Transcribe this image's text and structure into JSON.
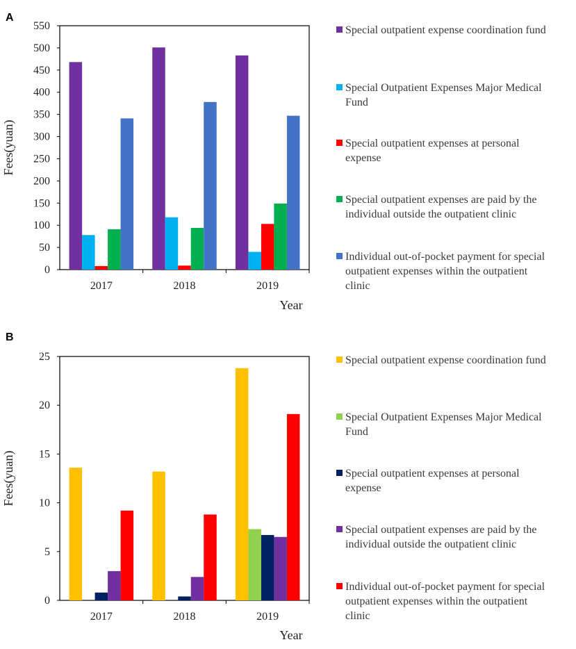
{
  "chart_data": [
    {
      "panel": "A",
      "type": "bar",
      "categories": [
        "2017",
        "2018",
        "2019"
      ],
      "series": [
        {
          "name": "Special outpatient expense coordination fund",
          "color": "#7030A0",
          "values": [
            468,
            501,
            483
          ]
        },
        {
          "name": "Special Outpatient Expenses Major Medical Fund",
          "color": "#00B0F0",
          "values": [
            78,
            118,
            40
          ]
        },
        {
          "name": "Special outpatient expenses at personal expense",
          "color": "#FF0000",
          "values": [
            8,
            9,
            103
          ]
        },
        {
          "name": "Special outpatient expenses are paid by the individual outside the outpatient clinic",
          "color": "#00B050",
          "values": [
            91,
            94,
            149
          ]
        },
        {
          "name": "Individual out-of-pocket payment for special outpatient expenses within the outpatient clinic",
          "color": "#4472C4",
          "values": [
            341,
            378,
            347
          ]
        }
      ],
      "ylabel": "Fees(yuan)",
      "xlabel": "Year",
      "ylim": [
        0,
        550
      ],
      "yticks": [
        "0",
        "50",
        "100",
        "150",
        "200",
        "250",
        "300",
        "350",
        "400",
        "450",
        "500",
        "550"
      ],
      "legend_lines": [
        [
          "Special outpatient expense coordination fund"
        ],
        [
          "Special Outpatient Expenses Major Medical",
          "Fund"
        ],
        [
          "Special outpatient expenses at personal",
          "expense"
        ],
        [
          "Special outpatient expenses are paid by the",
          "individual outside the outpatient clinic"
        ],
        [
          "Individual out-of-pocket payment for special",
          "outpatient expenses within the outpatient",
          "clinic"
        ]
      ]
    },
    {
      "panel": "B",
      "type": "bar",
      "categories": [
        "2017",
        "2018",
        "2019"
      ],
      "series": [
        {
          "name": "Special outpatient expense coordination fund",
          "color": "#FFC000",
          "values": [
            13.6,
            13.2,
            23.8
          ]
        },
        {
          "name": "Special Outpatient Expenses Major Medical Fund",
          "color": "#92D050",
          "values": [
            0,
            0,
            7.3
          ]
        },
        {
          "name": "Special outpatient expenses at personal expense",
          "color": "#002060",
          "values": [
            0.8,
            0.4,
            6.7
          ]
        },
        {
          "name": "Special outpatient expenses are paid by the individual outside the outpatient clinic",
          "color": "#7030A0",
          "values": [
            3.0,
            2.4,
            6.5
          ]
        },
        {
          "name": "Individual out-of-pocket payment for special outpatient expenses within the outpatient clinic",
          "color": "#FF0000",
          "values": [
            9.2,
            8.8,
            19.1
          ]
        }
      ],
      "ylabel": "Fees(yuan)",
      "xlabel": "Year",
      "ylim": [
        0,
        25
      ],
      "yticks": [
        "0",
        "5",
        "10",
        "15",
        "20",
        "25"
      ],
      "legend_lines": [
        [
          "Special outpatient expense coordination fund"
        ],
        [
          "Special Outpatient Expenses Major Medical",
          "Fund"
        ],
        [
          "Special outpatient expenses at personal",
          "expense"
        ],
        [
          "Special outpatient expenses are paid by the",
          "individual outside the outpatient clinic"
        ],
        [
          "Individual out-of-pocket payment for special",
          "outpatient expenses within the outpatient",
          "clinic"
        ]
      ]
    }
  ]
}
